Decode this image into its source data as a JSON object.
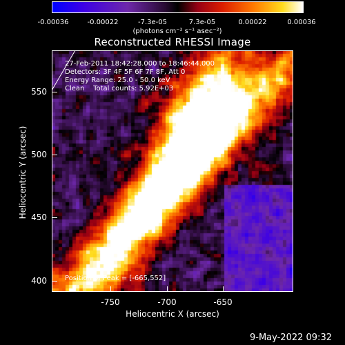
{
  "colorbar": {
    "ticks": [
      "-0.00036",
      "-0.00022",
      "-7.3e-05",
      "7.3e-05",
      "0.00022",
      "0.00036"
    ],
    "unit": "(photons cm⁻² s⁻¹ asec⁻²)"
  },
  "title": "Reconstructed RHESSI Image",
  "annotations": {
    "time_range": "27-Feb-2011 18:42:28.000 to 18:46:44.000",
    "detectors": "Detectors: 3F 4F 5F 6F 7F 8F, Att 0",
    "energy": "Energy Range: 25.0 - 50.0 keV",
    "clean": "Clean    Total counts: 5.92E+03",
    "peak": "Position of Peak = [-665,552]"
  },
  "axes": {
    "x_label": "Heliocentric X (arcsec)",
    "y_label": "Heliocentric Y (arcsec)",
    "x_ticks": [
      "-750",
      "-700",
      "-650"
    ],
    "y_ticks": [
      "550",
      "500",
      "450",
      "400"
    ]
  },
  "datestamp": "9-May-2022 09:32"
}
